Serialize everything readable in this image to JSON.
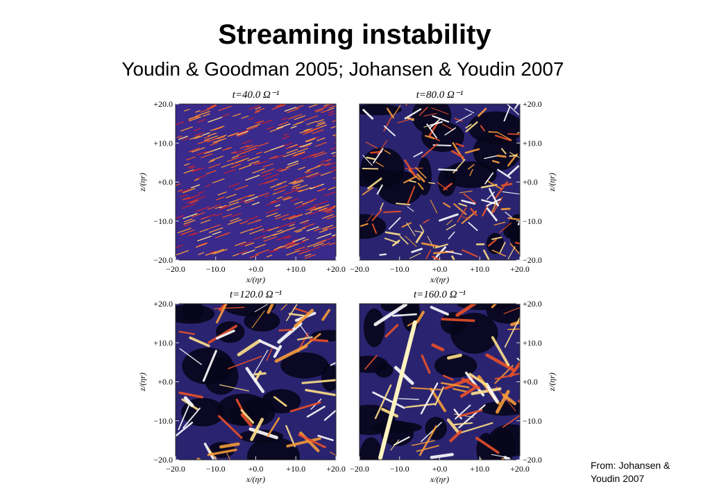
{
  "header": {
    "title": "Streaming instability",
    "subtitle": "Youdin & Goodman 2005; Johansen & Youdin 2007"
  },
  "figure": {
    "panels": [
      {
        "title": "t=40.0 Ω⁻¹"
      },
      {
        "title": "t=80.0 Ω⁻¹"
      },
      {
        "title": "t=120.0 Ω⁻¹"
      },
      {
        "title": "t=160.0 Ω⁻¹"
      }
    ],
    "xticks": [
      "−20.0",
      "−10.0",
      "+0.0",
      "+10.0",
      "+20.0"
    ],
    "yticks": [
      "+20.0",
      "+10.0",
      "+0.0",
      "−10.0",
      "−20.0"
    ],
    "xlabel": "x/(ηr)",
    "ylabel": "z/(ηr)"
  },
  "credit": [
    "From: Johansen &",
    "Youdin 2007"
  ]
}
